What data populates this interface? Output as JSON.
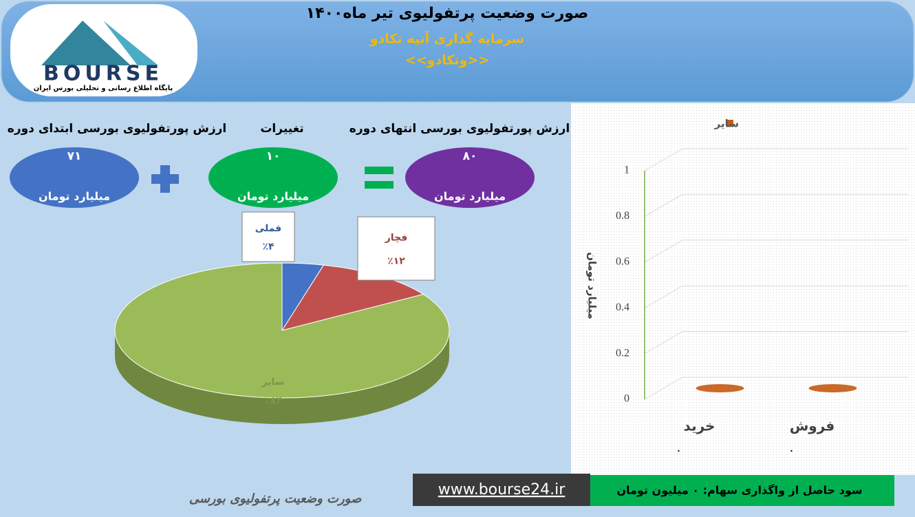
{
  "header": {
    "title": "صورت وضعیت پرتفولیوی تیر ماه۱۴۰۰",
    "subtitle": "سرمایه گذاری آتیه تکادو",
    "symbol": "<<وتکادو>>"
  },
  "logo": {
    "name": "BOURSE",
    "tagline": "پایگاه اطلاع رسانی و تحلیلی بورس ایران"
  },
  "summary": {
    "start": {
      "label": "ارزش پورتفولیوی بورسی ابتدای دوره",
      "value": "۷۱",
      "unit": "میلیارد تومان"
    },
    "change": {
      "label": "تغییرات",
      "value": "۱۰",
      "unit": "میلیارد تومان"
    },
    "end": {
      "label": "ارزش پورتفولیوی بورسی انتهای دوره",
      "value": "۸۰",
      "unit": "میلیارد تومان"
    }
  },
  "chart_data": [
    {
      "type": "pie",
      "categories": [
        "فملی",
        "فچار",
        "سایر"
      ],
      "values": [
        4,
        12,
        84
      ],
      "value_labels": [
        "٪۴",
        "٪۱۲",
        "٪۸۴"
      ],
      "colors": [
        "#4472c4",
        "#c0504d",
        "#9bbb59"
      ]
    },
    {
      "type": "bar",
      "categories": [
        "خرید",
        "فروش"
      ],
      "ylabel": "میلیارد تومان",
      "ylim": [
        0,
        1
      ],
      "yticks": [
        0,
        0.2,
        0.4,
        0.6,
        0.8,
        1
      ],
      "grid": true,
      "legend": "top",
      "series": [
        {
          "name": "سایر",
          "color": "#c55a11",
          "values": [
            0,
            0
          ],
          "value_labels": [
            "٠",
            "٠"
          ]
        }
      ]
    }
  ],
  "footer": {
    "caption": "صورت وضعیت پرتفولیوی بورسی",
    "url": "www.bourse24.ir",
    "profit": "سود حاصل از واگذاری سهام: ۰ میلیون تومان"
  }
}
